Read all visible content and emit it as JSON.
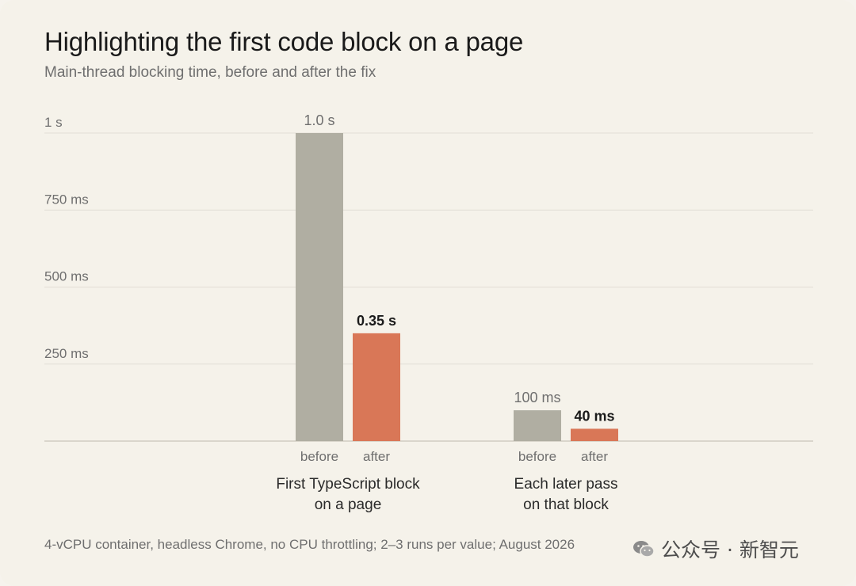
{
  "header": {
    "title": "Highlighting the first code block on a page",
    "subtitle": "Main-thread blocking time, before and after the fix"
  },
  "footnote": "4-vCPU container, headless Chrome, no CPU throttling; 2–3 runs per value; August 2026",
  "watermark": {
    "text": "公众号 · 新智元",
    "icon": "wechat-icon"
  },
  "colors": {
    "before": "#b0aea2",
    "after": "#d97757",
    "grid": "#e2ded5",
    "axis": "#c9c5bb",
    "axis_text": "#6f6f6f",
    "label_before": "#6f6f6f",
    "label_after": "#1b1b1b"
  },
  "chart_data": {
    "type": "bar",
    "title": "Highlighting the first code block on a page",
    "subtitle": "Main-thread blocking time, before and after the fix",
    "unit": "ms",
    "ylim": [
      0,
      1000
    ],
    "yticks": [
      {
        "value": 250,
        "label": "250 ms"
      },
      {
        "value": 500,
        "label": "500 ms"
      },
      {
        "value": 750,
        "label": "750 ms"
      },
      {
        "value": 1000,
        "label": "1 s"
      }
    ],
    "grid": true,
    "legend": "none",
    "groups": [
      {
        "label": [
          "First TypeScript block",
          "on a page"
        ],
        "bars": [
          {
            "series": "before",
            "label": "before",
            "value": 1000,
            "data_label": "1.0 s"
          },
          {
            "series": "after",
            "label": "after",
            "value": 350,
            "data_label": "0.35 s"
          }
        ]
      },
      {
        "label": [
          "Each later pass",
          "on that block"
        ],
        "bars": [
          {
            "series": "before",
            "label": "before",
            "value": 100,
            "data_label": "100 ms"
          },
          {
            "series": "after",
            "label": "after",
            "value": 40,
            "data_label": "40 ms"
          }
        ]
      }
    ]
  }
}
